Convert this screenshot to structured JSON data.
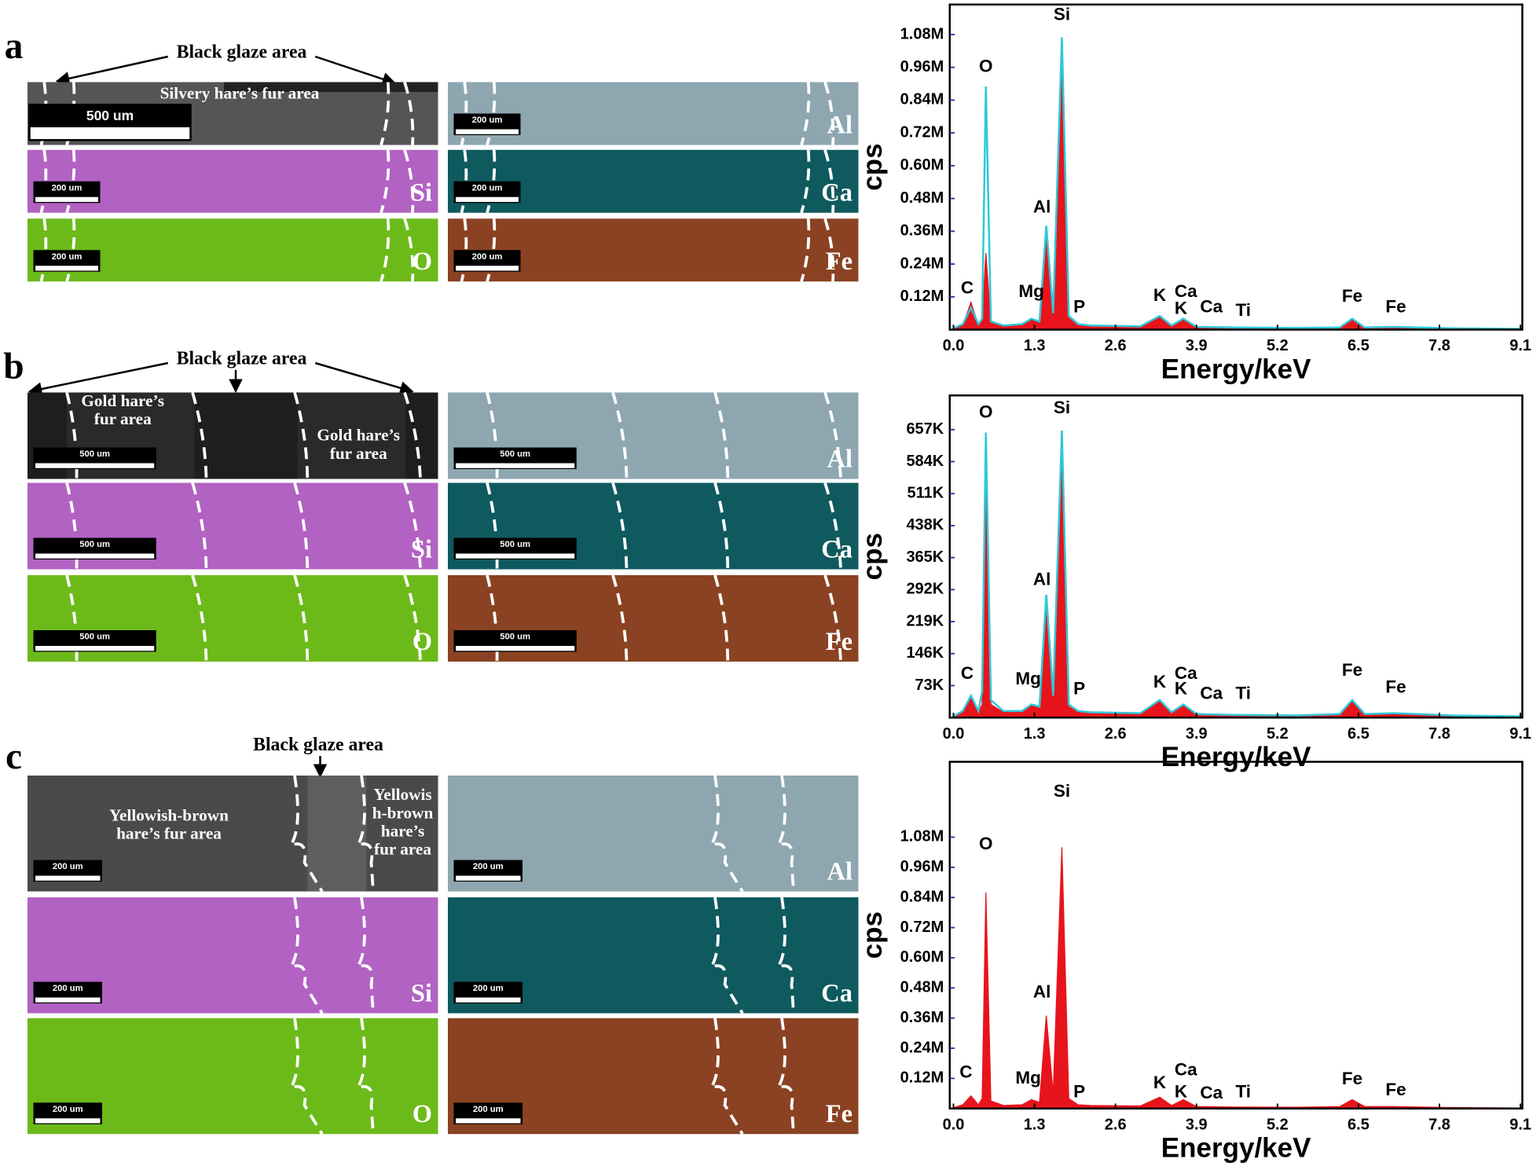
{
  "panels": [
    {
      "letter": "a",
      "callout": "Black glaze area",
      "region_labels": [
        [
          "Silvery hare’s fur area"
        ]
      ],
      "maps": [
        {
          "scale": "500 um"
        },
        {
          "element": "Si",
          "scale": "200 um"
        },
        {
          "element": "O",
          "scale": "200 um"
        },
        {
          "element": "Al",
          "scale": "200 um"
        },
        {
          "element": "Ca",
          "scale": "200 um"
        },
        {
          "element": "Fe",
          "scale": "200 um"
        }
      ]
    },
    {
      "letter": "b",
      "callout": "Black glaze area",
      "region_labels": [
        [
          "Gold hare’s",
          "fur area"
        ],
        [
          "Gold hare’s",
          "fur area"
        ]
      ],
      "maps": [
        {
          "scale": "500 um"
        },
        {
          "element": "Si",
          "scale": "500 um"
        },
        {
          "element": "O",
          "scale": "500 um"
        },
        {
          "element": "Al",
          "scale": "500 um"
        },
        {
          "element": "Ca",
          "scale": "500 um"
        },
        {
          "element": "Fe",
          "scale": "500 um"
        }
      ]
    },
    {
      "letter": "c",
      "callout": "Black glaze area",
      "region_labels": [
        [
          "Yellowish-brown",
          "hare’s fur area"
        ],
        [
          "Yellowis",
          "h-brown",
          "hare’s",
          "fur area"
        ]
      ],
      "maps": [
        {
          "scale": "200 um"
        },
        {
          "element": "Si",
          "scale": "200 um"
        },
        {
          "element": "O",
          "scale": "200 um"
        },
        {
          "element": "Al",
          "scale": "200 um"
        },
        {
          "element": "Ca",
          "scale": "200 um"
        },
        {
          "element": "Fe",
          "scale": "200 um"
        }
      ]
    }
  ],
  "chart_data": [
    {
      "type": "spectrum",
      "y_label": "cps",
      "x_label": "Energy/keV",
      "x": [
        0,
        0.15,
        0.28,
        0.4,
        0.46,
        0.52,
        0.6,
        0.8,
        1.1,
        1.25,
        1.38,
        1.49,
        1.6,
        1.74,
        1.85,
        2.0,
        2.2,
        3.0,
        3.31,
        3.5,
        3.69,
        3.9,
        4.51,
        5.5,
        6.2,
        6.4,
        6.6,
        7.06,
        8.0,
        9.1
      ],
      "series": [
        {
          "color": "#e8141c",
          "fill": true,
          "values": [
            3000,
            15000,
            100000,
            15000,
            30000,
            280000,
            25000,
            12000,
            18000,
            35000,
            28000,
            370000,
            55000,
            1040000,
            45000,
            18000,
            12000,
            10000,
            45000,
            12000,
            38000,
            8000,
            6000,
            5000,
            6000,
            38000,
            6000,
            8000,
            4000,
            2000
          ]
        },
        {
          "color": "#2ec8d8",
          "fill": false,
          "values": [
            5000,
            20000,
            80000,
            20000,
            40000,
            890000,
            30000,
            15000,
            20000,
            40000,
            30000,
            380000,
            60000,
            1070000,
            50000,
            20000,
            15000,
            12000,
            50000,
            15000,
            40000,
            10000,
            8000,
            6000,
            8000,
            40000,
            8000,
            10000,
            5000,
            3000
          ]
        }
      ],
      "xlim": [
        -0.06,
        9.13
      ],
      "ylim": [
        0,
        1190000
      ],
      "xticks": [
        {
          "value": 0,
          "label": "0.0"
        },
        1.3,
        2.6,
        3.9,
        5.2,
        6.5,
        7.8,
        9.1
      ],
      "yticks": [
        {
          "value": 120000,
          "label": "0.12M"
        },
        {
          "value": 240000,
          "label": "0.24M"
        },
        {
          "value": 360000,
          "label": "0.36M"
        },
        {
          "value": 480000,
          "label": "0.48M"
        },
        {
          "value": 600000,
          "label": "0.60M"
        },
        {
          "value": 720000,
          "label": "0.72M"
        },
        {
          "value": 840000,
          "label": "0.84M"
        },
        {
          "value": 960000,
          "label": "0.96M"
        },
        {
          "value": 1080000,
          "label": "1.08M"
        }
      ],
      "annotations": [
        {
          "text": "Si",
          "x": 1.74,
          "y": 1150000
        },
        {
          "text": "O",
          "x": 0.52,
          "y": 960000
        },
        {
          "text": "Al",
          "x": 1.42,
          "y": 445000
        },
        {
          "text": "C",
          "x": 0.22,
          "y": 150000
        },
        {
          "text": "Mg",
          "x": 1.25,
          "y": 137000
        },
        {
          "text": "P",
          "x": 2.02,
          "y": 80000
        },
        {
          "text": "K",
          "x": 3.31,
          "y": 122000
        },
        {
          "text": "Ca",
          "x": 3.73,
          "y": 137000
        },
        {
          "text": "K",
          "x": 3.65,
          "y": 75000
        },
        {
          "text": "Ca",
          "x": 4.14,
          "y": 80000
        },
        {
          "text": "Ti",
          "x": 4.65,
          "y": 68000
        },
        {
          "text": "Fe",
          "x": 6.4,
          "y": 119000
        },
        {
          "text": "Fe",
          "x": 7.1,
          "y": 80000
        }
      ]
    },
    {
      "type": "spectrum",
      "y_label": "cps",
      "x_label": "Energy/keV",
      "x": [
        0,
        0.15,
        0.28,
        0.4,
        0.46,
        0.52,
        0.6,
        0.8,
        1.1,
        1.25,
        1.38,
        1.49,
        1.6,
        1.74,
        1.85,
        2.0,
        2.2,
        3.0,
        3.31,
        3.5,
        3.69,
        3.9,
        4.51,
        5.5,
        6.2,
        6.4,
        6.6,
        7.06,
        8.0,
        9.1
      ],
      "series": [
        {
          "color": "#e8141c",
          "fill": true,
          "values": [
            2000,
            12000,
            45000,
            12000,
            30000,
            640000,
            30000,
            12000,
            12000,
            28000,
            22000,
            275000,
            45000,
            650000,
            25000,
            12000,
            10000,
            8000,
            38000,
            10000,
            28000,
            6000,
            5000,
            4000,
            6000,
            38000,
            6000,
            8000,
            4000,
            2000
          ]
        },
        {
          "color": "#2ec8d8",
          "fill": false,
          "values": [
            3000,
            15000,
            50000,
            15000,
            60000,
            650000,
            40000,
            15000,
            15000,
            30000,
            25000,
            280000,
            50000,
            655000,
            30000,
            15000,
            12000,
            10000,
            40000,
            12000,
            30000,
            8000,
            6000,
            5000,
            8000,
            40000,
            8000,
            10000,
            5000,
            3000
          ]
        }
      ],
      "xlim": [
        -0.06,
        9.13
      ],
      "ylim": [
        0,
        735000
      ],
      "xticks": [
        {
          "value": 0,
          "label": "0.0"
        },
        1.3,
        2.6,
        3.9,
        5.2,
        6.5,
        7.8,
        9.1
      ],
      "yticks": [
        {
          "value": 73000,
          "label": "73K"
        },
        {
          "value": 146000,
          "label": "146K"
        },
        {
          "value": 219000,
          "label": "219K"
        },
        {
          "value": 292000,
          "label": "292K"
        },
        {
          "value": 365000,
          "label": "365K"
        },
        {
          "value": 438000,
          "label": "438K"
        },
        {
          "value": 511000,
          "label": "511K"
        },
        {
          "value": 584000,
          "label": "584K"
        },
        {
          "value": 657000,
          "label": "657K"
        }
      ],
      "annotations": [
        {
          "text": "Si",
          "x": 1.74,
          "y": 705000
        },
        {
          "text": "O",
          "x": 0.52,
          "y": 695000
        },
        {
          "text": "Al",
          "x": 1.42,
          "y": 313000
        },
        {
          "text": "C",
          "x": 0.22,
          "y": 99000
        },
        {
          "text": "Mg",
          "x": 1.2,
          "y": 86000
        },
        {
          "text": "P",
          "x": 2.02,
          "y": 64000
        },
        {
          "text": "K",
          "x": 3.31,
          "y": 79000
        },
        {
          "text": "Ca",
          "x": 3.73,
          "y": 99000
        },
        {
          "text": "K",
          "x": 3.65,
          "y": 64000
        },
        {
          "text": "Ca",
          "x": 4.14,
          "y": 53000
        },
        {
          "text": "Ti",
          "x": 4.65,
          "y": 53000
        },
        {
          "text": "Fe",
          "x": 6.4,
          "y": 106000
        },
        {
          "text": "Fe",
          "x": 7.1,
          "y": 68000
        }
      ]
    },
    {
      "type": "spectrum",
      "y_label": "cps",
      "x_label": "Energy/keV",
      "x": [
        0,
        0.15,
        0.28,
        0.4,
        0.46,
        0.52,
        0.6,
        0.8,
        1.1,
        1.25,
        1.38,
        1.49,
        1.6,
        1.74,
        1.85,
        2.0,
        2.2,
        3.0,
        3.31,
        3.5,
        3.69,
        3.9,
        4.51,
        5.5,
        6.2,
        6.4,
        6.6,
        7.06,
        8.0,
        9.1
      ],
      "series": [
        {
          "color": "#e8141c",
          "fill": true,
          "values": [
            3000,
            15000,
            50000,
            15000,
            40000,
            860000,
            30000,
            12000,
            15000,
            35000,
            25000,
            370000,
            60000,
            1040000,
            40000,
            15000,
            12000,
            10000,
            45000,
            12000,
            35000,
            8000,
            6000,
            5000,
            8000,
            35000,
            8000,
            8000,
            4000,
            2000
          ]
        }
      ],
      "xlim": [
        -0.06,
        9.13
      ],
      "ylim": [
        0,
        1380000
      ],
      "xticks": [
        {
          "value": 0,
          "label": "0.0"
        },
        1.3,
        2.6,
        3.9,
        5.2,
        6.5,
        7.8,
        9.1
      ],
      "yticks": [
        {
          "value": 120000,
          "label": "0.12M"
        },
        {
          "value": 240000,
          "label": "0.24M"
        },
        {
          "value": 360000,
          "label": "0.36M"
        },
        {
          "value": 480000,
          "label": "0.48M"
        },
        {
          "value": 600000,
          "label": "0.60M"
        },
        {
          "value": 720000,
          "label": "0.72M"
        },
        {
          "value": 840000,
          "label": "0.84M"
        },
        {
          "value": 960000,
          "label": "0.96M"
        },
        {
          "value": 1080000,
          "label": "1.08M"
        }
      ],
      "annotations": [
        {
          "text": "Si",
          "x": 1.74,
          "y": 1260000
        },
        {
          "text": "O",
          "x": 0.52,
          "y": 1050000
        },
        {
          "text": "Al",
          "x": 1.42,
          "y": 460000
        },
        {
          "text": "C",
          "x": 0.2,
          "y": 142000
        },
        {
          "text": "Mg",
          "x": 1.2,
          "y": 118000
        },
        {
          "text": "P",
          "x": 2.02,
          "y": 63000
        },
        {
          "text": "K",
          "x": 3.31,
          "y": 99000
        },
        {
          "text": "Ca",
          "x": 3.73,
          "y": 150000
        },
        {
          "text": "K",
          "x": 3.65,
          "y": 63000
        },
        {
          "text": "Ca",
          "x": 4.14,
          "y": 59000
        },
        {
          "text": "Ti",
          "x": 4.65,
          "y": 63000
        },
        {
          "text": "Fe",
          "x": 6.4,
          "y": 114000
        },
        {
          "text": "Fe",
          "x": 7.1,
          "y": 71000
        }
      ]
    }
  ]
}
